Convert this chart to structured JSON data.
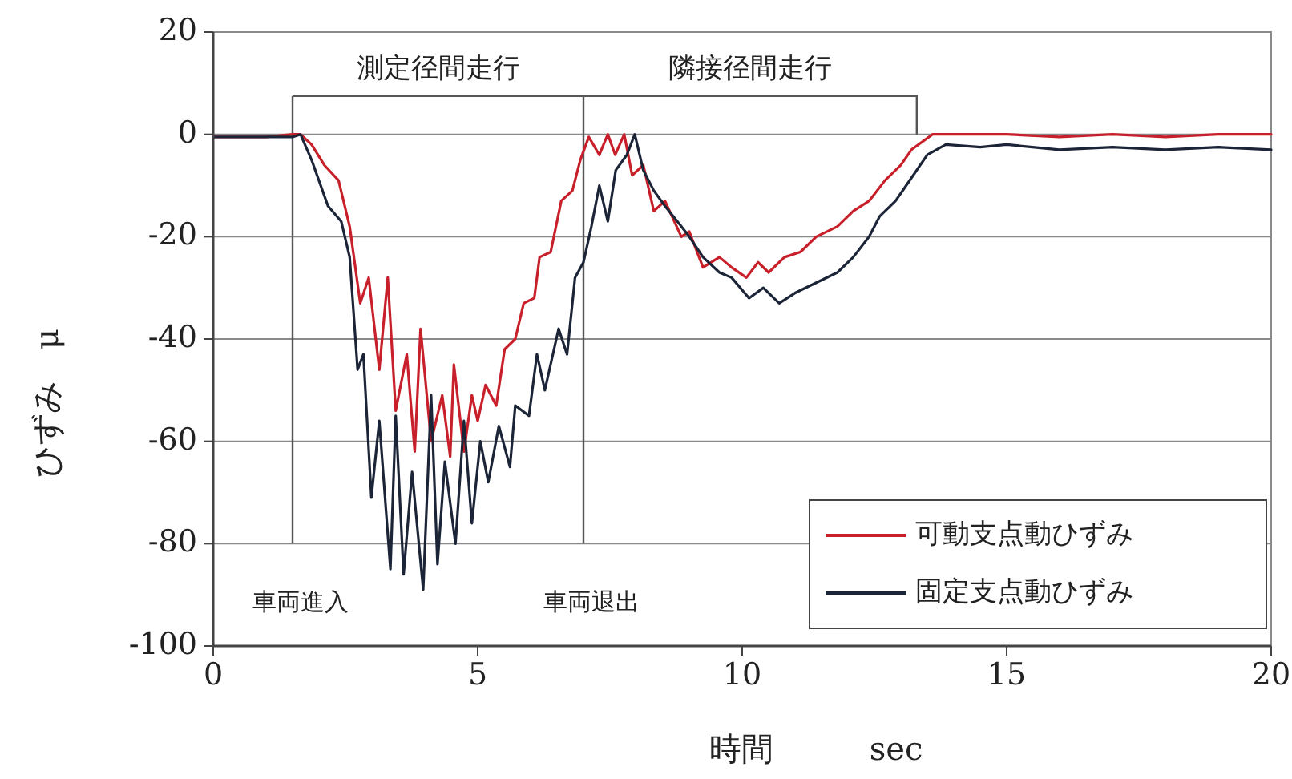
{
  "chart_data": {
    "type": "line",
    "xlabel": "時間　　　sec",
    "ylabel": "ひずみ　μ",
    "xlim": [
      0,
      20
    ],
    "xticks": [
      0,
      5,
      10,
      15,
      20
    ],
    "ylim": [
      -100,
      20
    ],
    "yticks": [
      -100,
      -80,
      -60,
      -40,
      -20,
      0,
      20
    ],
    "grid": "y",
    "legend": "bottom right",
    "line_style": "solid",
    "series": [
      {
        "name": "可動支点動ひずみ",
        "color": "#c8202a",
        "x": [
          0,
          0.5,
          1.0,
          1.5,
          1.65,
          1.86,
          2.1,
          2.37,
          2.58,
          2.78,
          2.94,
          3.14,
          3.3,
          3.45,
          3.66,
          3.81,
          3.92,
          4.12,
          4.33,
          4.48,
          4.55,
          4.74,
          4.89,
          5.0,
          5.15,
          5.35,
          5.51,
          5.71,
          5.87,
          6.07,
          6.17,
          6.38,
          6.58,
          6.79,
          6.94,
          7.1,
          7.3,
          7.46,
          7.6,
          7.77,
          7.92,
          8.13,
          8.33,
          8.54,
          8.85,
          9.0,
          9.26,
          9.57,
          9.8,
          10.08,
          10.3,
          10.5,
          10.8,
          11.1,
          11.4,
          11.8,
          12.1,
          12.4,
          12.7,
          13.0,
          13.2,
          13.6,
          14.0,
          15.0,
          16.0,
          17.0,
          18.0,
          19.0,
          20.0
        ],
        "values": [
          -0.5,
          -0.5,
          -0.5,
          0,
          0,
          -2,
          -6,
          -9,
          -18,
          -33,
          -28,
          -46,
          -28,
          -54,
          -43,
          -62,
          -38,
          -60,
          -51,
          -63,
          -45,
          -62,
          -51,
          -56,
          -49,
          -53,
          -42,
          -40,
          -33,
          -32,
          -24,
          -23,
          -13,
          -11,
          -5,
          -0.5,
          -4,
          0,
          -4,
          0,
          -8,
          -6,
          -15,
          -13,
          -20,
          -19,
          -26,
          -24,
          -26,
          -28,
          -25,
          -27,
          -24,
          -23,
          -20,
          -18,
          -15,
          -13,
          -9,
          -6,
          -3,
          0,
          0,
          0,
          -0.5,
          0,
          -0.5,
          0,
          0
        ]
      },
      {
        "name": "固定支点動ひずみ",
        "color": "#1c2538",
        "x": [
          0,
          0.5,
          1.0,
          1.5,
          1.65,
          1.86,
          2.17,
          2.42,
          2.58,
          2.73,
          2.84,
          2.99,
          3.14,
          3.35,
          3.45,
          3.6,
          3.76,
          3.97,
          4.12,
          4.24,
          4.38,
          4.58,
          4.74,
          4.89,
          5.05,
          5.2,
          5.4,
          5.61,
          5.71,
          5.97,
          6.12,
          6.27,
          6.53,
          6.69,
          6.84,
          7.0,
          7.15,
          7.3,
          7.46,
          7.61,
          7.82,
          7.97,
          8.13,
          8.33,
          8.54,
          8.85,
          9.0,
          9.26,
          9.57,
          9.8,
          10.13,
          10.4,
          10.7,
          11.0,
          11.4,
          11.8,
          12.1,
          12.4,
          12.6,
          12.9,
          13.1,
          13.5,
          13.85,
          14.5,
          15.0,
          16.0,
          17.0,
          18.0,
          19.0,
          20.0
        ],
        "values": [
          -0.5,
          -0.5,
          -0.5,
          -0.5,
          0,
          -5,
          -14,
          -17,
          -24,
          -46,
          -43,
          -71,
          -56,
          -85,
          -55,
          -86,
          -66,
          -89,
          -51,
          -84,
          -64,
          -80,
          -56,
          -76,
          -60,
          -68,
          -57,
          -65,
          -53,
          -55,
          -43,
          -50,
          -38,
          -43,
          -28,
          -25,
          -18,
          -10,
          -17,
          -7,
          -4,
          0,
          -7,
          -11,
          -14,
          -18,
          -20,
          -24,
          -27,
          -28,
          -32,
          -30,
          -33,
          -31,
          -29,
          -27,
          -24,
          -20,
          -16,
          -13,
          -10,
          -4,
          -2,
          -2.5,
          -2,
          -3,
          -2.5,
          -3,
          -2.5,
          -3
        ]
      }
    ],
    "ref_lines": [
      {
        "axis": "x",
        "value": 1.5,
        "label": "車両進入"
      },
      {
        "axis": "x",
        "value": 7.0,
        "label": "車両退出"
      }
    ],
    "annotations": [
      "測定径間走行",
      "隣接径間走行"
    ]
  }
}
